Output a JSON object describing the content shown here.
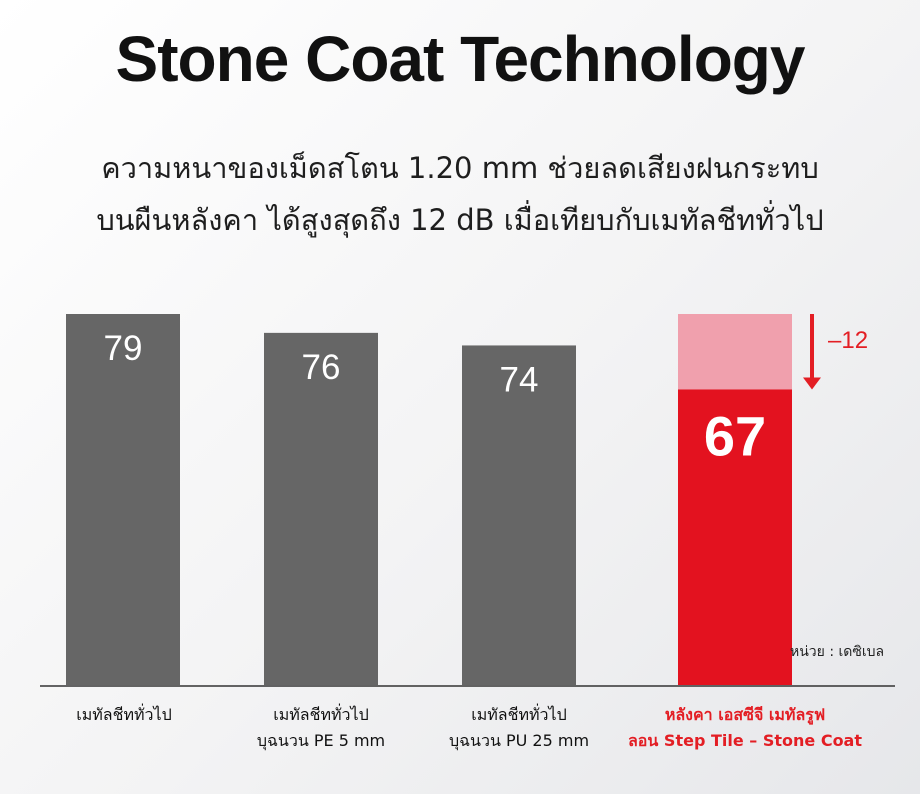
{
  "title": "Stone Coat Technology",
  "subtitle": [
    "ความหนาของเม็ดสโตน 1.20 mm ช่วยลดเสียงฝนกระทบ",
    "บนผืนหลังคา ได้สูงสุดถึง 12 dB เมื่อเทียบกับเมทัลชีททั่วไป"
  ],
  "unit_label": "หน่วย : เดซิเบล",
  "colors": {
    "bar": "#666666",
    "highlight": "#e3121f",
    "highlight_light": "#f0a0ad",
    "arrow": "#e31e24"
  },
  "chart_data": {
    "type": "bar",
    "categories": [
      [
        "เมทัลชีททั่วไป"
      ],
      [
        "เมทัลชีททั่วไป",
        "บุฉนวน PE 5 mm"
      ],
      [
        "เมทัลชีททั่วไป",
        "บุฉนวน PU 25 mm"
      ],
      [
        "หลังคา เอสซีจี เมทัลรูฟ",
        "ลอน Step Tile – Stone Coat"
      ]
    ],
    "values": [
      79,
      76,
      74,
      67
    ],
    "highlight_index": 3,
    "reduction": {
      "reference": 79,
      "value": 67,
      "label": "–12"
    },
    "ylabel": "",
    "xlabel": "",
    "grid": false
  }
}
